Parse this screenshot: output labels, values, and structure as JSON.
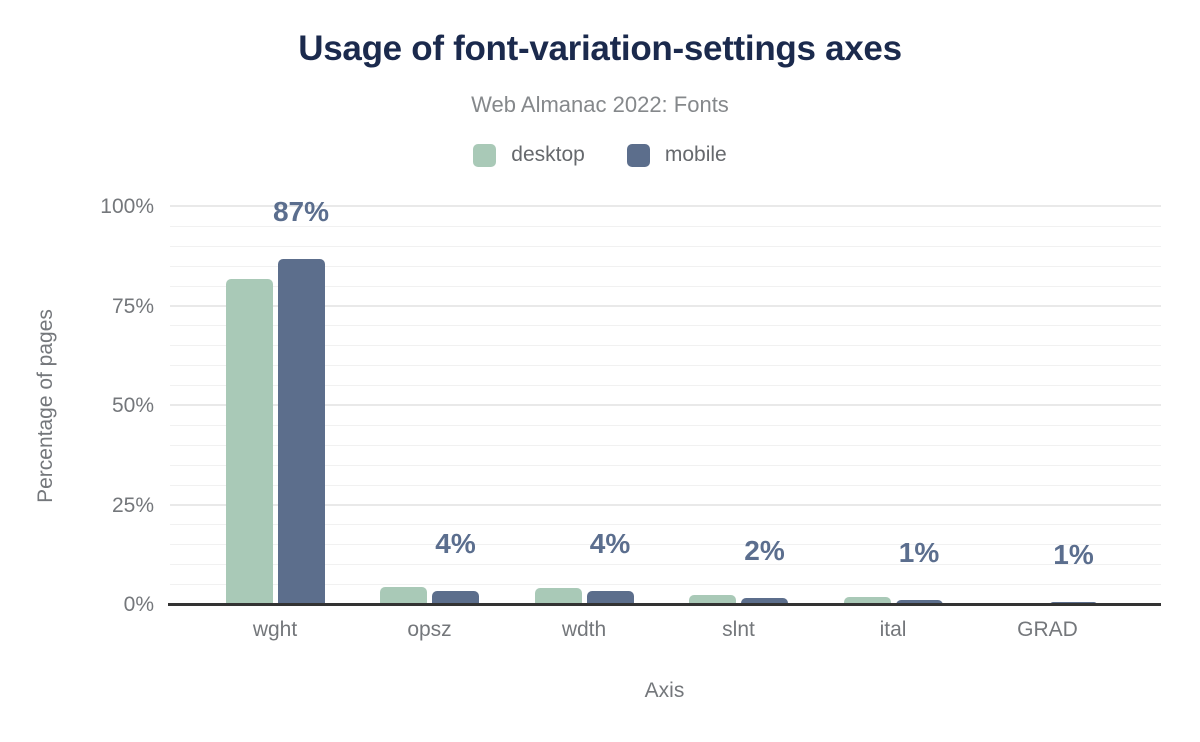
{
  "chart_data": {
    "type": "bar",
    "title": "Usage of font-variation-settings axes",
    "subtitle": "Web Almanac 2022: Fonts",
    "xlabel": "Axis",
    "ylabel": "Percentage of pages",
    "categories": [
      "wght",
      "opsz",
      "wdth",
      "slnt",
      "ital",
      "GRAD"
    ],
    "series": [
      {
        "name": "desktop",
        "color": "#a9c9b7",
        "values": [
          82,
          4.6,
          4.2,
          2.4,
          2.0,
          0.5
        ]
      },
      {
        "name": "mobile",
        "color": "#5c6e8c",
        "values": [
          87,
          3.6,
          3.5,
          1.8,
          1.2,
          0.7
        ]
      }
    ],
    "value_labels": [
      "87%",
      "4%",
      "4%",
      "2%",
      "1%",
      "1%"
    ],
    "ylim": [
      0,
      100
    ],
    "yticks": [
      0,
      25,
      50,
      75,
      100
    ],
    "ytick_labels": [
      "0%",
      "25%",
      "50%",
      "75%",
      "100%"
    ],
    "minor_grid_step": 5,
    "major_grid_step": 25,
    "grid": "horizontal",
    "legend_position": "top",
    "value_label_color": "#5b6e8e",
    "axis_line_color": "#333333"
  }
}
